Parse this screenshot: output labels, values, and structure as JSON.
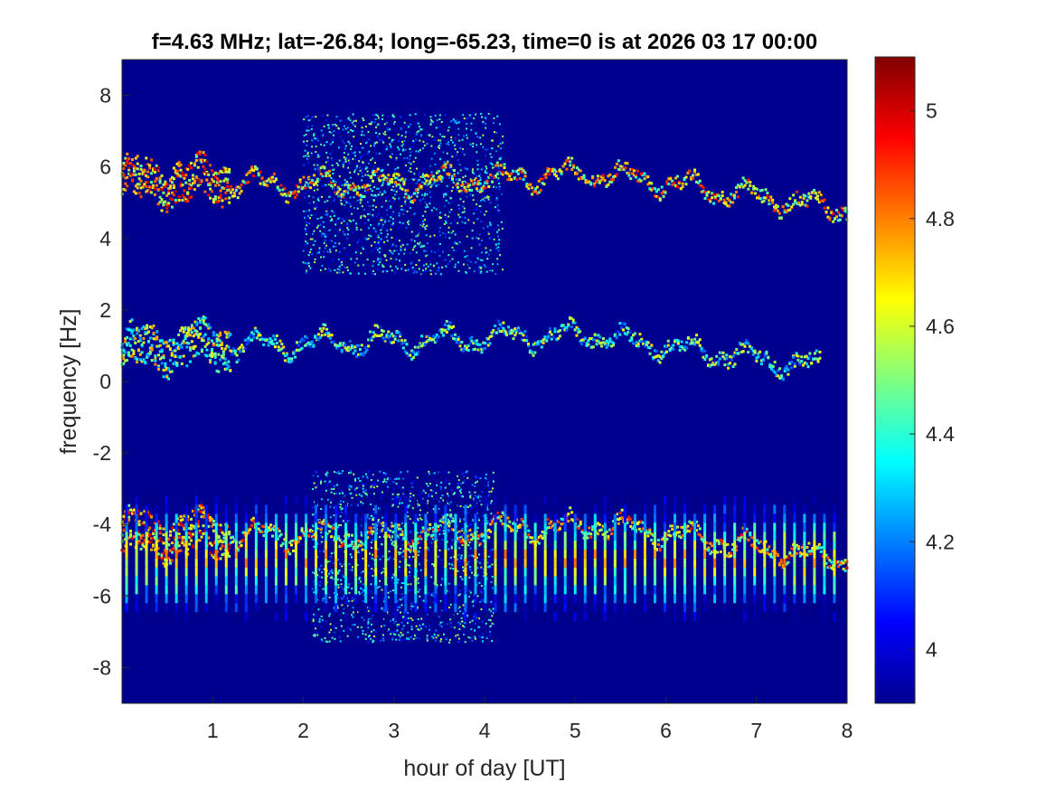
{
  "chart_data": {
    "type": "heatmap",
    "title": "f=4.63 MHz;  lat=-26.84; long=-65.23, time=0 is at 2026 03 17 00:00",
    "xlabel": "hour of day [UT]",
    "ylabel": "frequency [Hz]",
    "xlim": [
      0,
      8
    ],
    "ylim": [
      -9,
      9
    ],
    "x_ticks": [
      "1",
      "2",
      "3",
      "4",
      "5",
      "6",
      "7",
      "8"
    ],
    "x_tick_values": [
      1,
      2,
      3,
      4,
      5,
      6,
      7,
      8
    ],
    "y_ticks": [
      "8",
      "6",
      "4",
      "2",
      "0",
      "-2",
      "-4",
      "-6",
      "-8"
    ],
    "y_tick_values": [
      8,
      6,
      4,
      2,
      0,
      -2,
      -4,
      -6,
      -8
    ],
    "colorbar": {
      "colormap": "jet",
      "range": [
        3.9,
        5.1
      ],
      "ticks": [
        "5",
        "4.8",
        "4.6",
        "4.4",
        "4.2",
        "4"
      ],
      "tick_values": [
        5,
        4.8,
        4.6,
        4.4,
        4.2,
        4
      ]
    },
    "background_color": "#00008f",
    "features": [
      {
        "name": "positive Doppler trace",
        "x_range": [
          0,
          8
        ],
        "y_approx": [
          5.6,
          5.5,
          5.8,
          4.8
        ],
        "peak": 5.05
      },
      {
        "name": "near-zero trace",
        "x_range": [
          0,
          7.7
        ],
        "y_approx": [
          0.9,
          1.1,
          1.3,
          0.4
        ],
        "peak": 4.8
      },
      {
        "name": "negative Doppler trace",
        "x_range": [
          0,
          8
        ],
        "y_approx": [
          -4.3,
          -4.3,
          -4.0,
          -5.0
        ],
        "peak": 5.05
      },
      {
        "name": "spread echoes",
        "x_range": [
          2,
          4.2
        ],
        "y_range": [
          3,
          7.5
        ],
        "peak": 4.5
      },
      {
        "name": "spread echoes",
        "x_range": [
          2.1,
          4.1
        ],
        "y_range": [
          -7.3,
          -2.5
        ],
        "peak": 4.5
      },
      {
        "name": "periodic vertical stripes",
        "x_range": [
          0.05,
          7.95
        ],
        "y_range": [
          -6.7,
          -3.2
        ],
        "spacing_hours": 0.11,
        "peak": 4.9
      }
    ]
  }
}
